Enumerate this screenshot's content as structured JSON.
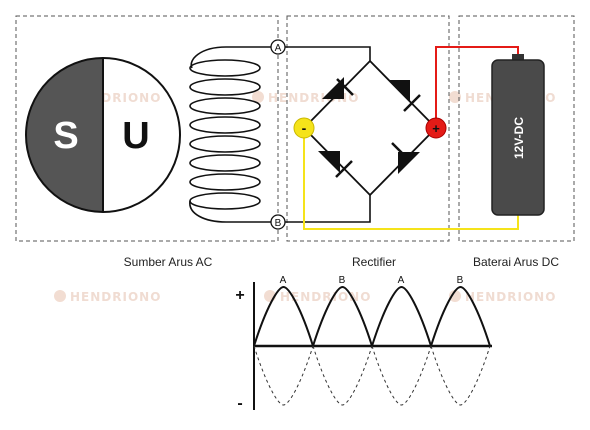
{
  "magnet": {
    "left_pole": "S",
    "right_pole": "U"
  },
  "terminals": {
    "top": "A",
    "bottom": "B"
  },
  "rectifier": {
    "negative_terminal": "-",
    "positive_terminal": "+"
  },
  "battery": {
    "label": "12V-DC"
  },
  "sections": {
    "ac_source": "Sumber Arus AC",
    "rectifier": "Rectifier",
    "battery": "Baterai Arus DC"
  },
  "waveform": {
    "plus_sign": "+",
    "minus_sign": "-",
    "peaks": [
      "A",
      "B",
      "A",
      "B"
    ]
  },
  "watermark": "HENDRIONO",
  "colors": {
    "magnet_dark": "#555555",
    "positive_wire": "#e41b17",
    "negative_wire": "#f5e31a",
    "battery_body": "#4a4a4a",
    "frame": "#555555"
  }
}
